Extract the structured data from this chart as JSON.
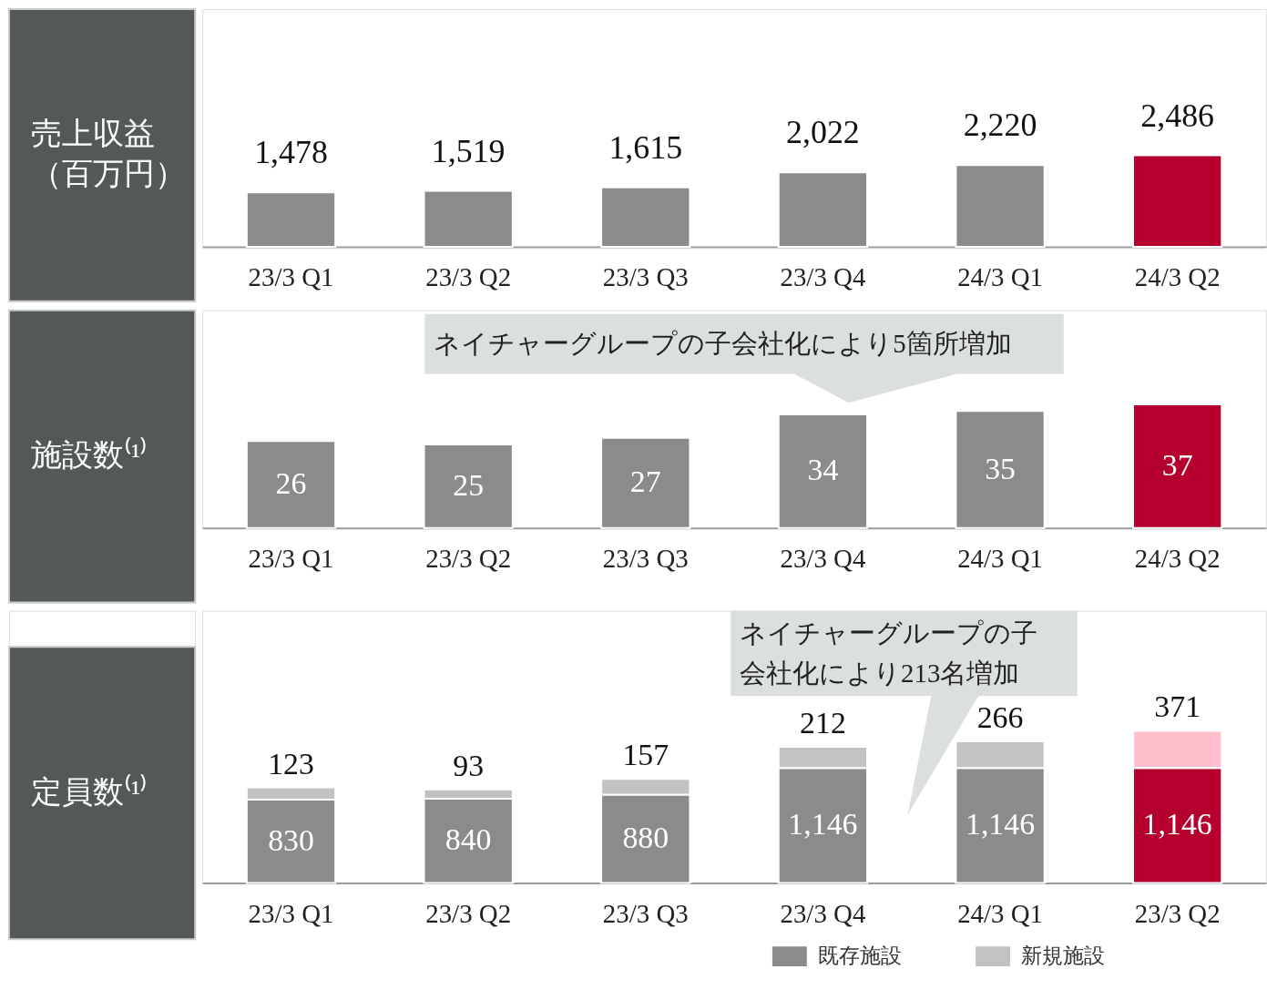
{
  "chart_data": [
    {
      "type": "bar",
      "ylabel": "売上収益（百万円）",
      "categories": [
        "23/3 Q1",
        "23/3 Q2",
        "23/3 Q3",
        "23/3 Q4",
        "24/3 Q1",
        "24/3 Q2"
      ],
      "values": [
        1478,
        1519,
        1615,
        2022,
        2220,
        2486
      ],
      "value_labels": [
        "1,478",
        "1,519",
        "1,615",
        "2,022",
        "2,220",
        "2,486"
      ],
      "colors": [
        "#898b8d",
        "#898b8d",
        "#898b8d",
        "#898b8d",
        "#898b8d",
        "#b5002d"
      ],
      "grid": false,
      "legend": false
    },
    {
      "type": "bar",
      "ylabel": "施設数⁽¹⁾",
      "categories": [
        "23/3 Q1",
        "23/3 Q2",
        "23/3 Q3",
        "23/3 Q4",
        "24/3 Q1",
        "24/3 Q2"
      ],
      "values": [
        26,
        25,
        27,
        34,
        35,
        37
      ],
      "value_labels": [
        "26",
        "25",
        "27",
        "34",
        "35",
        "37"
      ],
      "colors": [
        "#898b8d",
        "#898b8d",
        "#898b8d",
        "#898b8d",
        "#898b8d",
        "#b5002d"
      ],
      "grid": false,
      "legend": false,
      "annotations": [
        "ネイチャーグループの子会社化により5箇所増加"
      ]
    },
    {
      "type": "bar",
      "stacked": true,
      "ylabel": "定員数⁽¹⁾",
      "categories": [
        "23/3 Q1",
        "23/3 Q2",
        "23/3 Q3",
        "23/3 Q4",
        "24/3 Q1",
        "23/3 Q2"
      ],
      "series": [
        {
          "name": "既存施設",
          "color": "#898b8d",
          "colors": [
            "#898b8d",
            "#898b8d",
            "#898b8d",
            "#898b8d",
            "#898b8d",
            "#b5002d"
          ],
          "values": [
            830,
            840,
            880,
            1146,
            1146,
            1146
          ],
          "value_labels": [
            "830",
            "840",
            "880",
            "1,146",
            "1,146",
            "1,146"
          ]
        },
        {
          "name": "新規施設",
          "color": "#c1c2c3",
          "colors": [
            "#c1c2c3",
            "#c1c2c3",
            "#c1c2c3",
            "#c1c2c3",
            "#c1c2c3",
            "#ffbfcc"
          ],
          "values": [
            123,
            93,
            157,
            212,
            266,
            371
          ],
          "value_labels": [
            "123",
            "93",
            "157",
            "212",
            "266",
            "371"
          ]
        }
      ],
      "grid": false,
      "legend": "bottom",
      "annotations": [
        "ネイチャーグループの子会社化により213名増加"
      ]
    }
  ]
}
